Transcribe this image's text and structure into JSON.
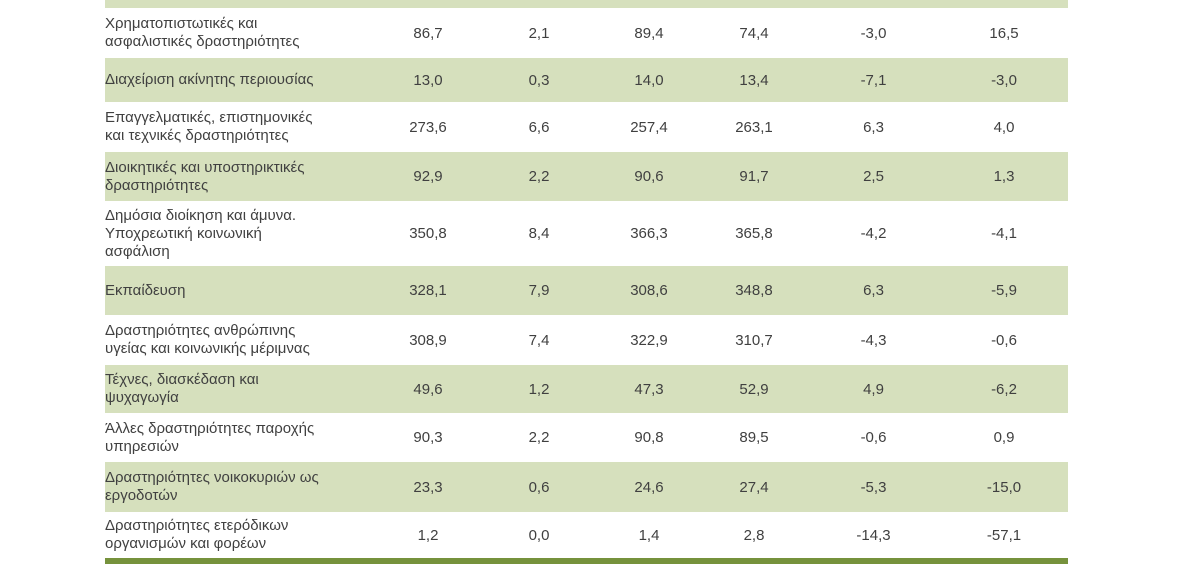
{
  "colors": {
    "band_green": "#d6e0bd",
    "border_olive": "#76923c",
    "text": "#404040",
    "background": "#ffffff"
  },
  "table": {
    "decimal_separator": ",",
    "rows": [
      {
        "label": "Χρηματοπιστωτικές και\nασφαλιστικές δραστηριότητες",
        "values": [
          "86,7",
          "2,1",
          "89,4",
          "74,4",
          "-3,0",
          "16,5"
        ],
        "shaded": false
      },
      {
        "label": "Διαχείριση ακίνητης περιουσίας",
        "values": [
          "13,0",
          "0,3",
          "14,0",
          "13,4",
          "-7,1",
          "-3,0"
        ],
        "shaded": true
      },
      {
        "label": "Επαγγελματικές, επιστημονικές\nκαι τεχνικές δραστηριότητες",
        "values": [
          "273,6",
          "6,6",
          "257,4",
          "263,1",
          "6,3",
          "4,0"
        ],
        "shaded": false
      },
      {
        "label": "Διοικητικές και υποστηρικτικές\nδραστηριότητες",
        "values": [
          "92,9",
          "2,2",
          "90,6",
          "91,7",
          "2,5",
          "1,3"
        ],
        "shaded": true
      },
      {
        "label": "Δημόσια διοίκηση και άμυνα.\nΥποχρεωτική κοινωνική\nασφάλιση",
        "values": [
          "350,8",
          "8,4",
          "366,3",
          "365,8",
          "-4,2",
          "-4,1"
        ],
        "shaded": false
      },
      {
        "label": "Εκπαίδευση",
        "values": [
          "328,1",
          "7,9",
          "308,6",
          "348,8",
          "6,3",
          "-5,9"
        ],
        "shaded": true
      },
      {
        "label": "Δραστηριότητες ανθρώπινης\nυγείας και κοινωνικής μέριμνας",
        "values": [
          "308,9",
          "7,4",
          "322,9",
          "310,7",
          "-4,3",
          "-0,6"
        ],
        "shaded": false
      },
      {
        "label": "Τέχνες, διασκέδαση και\nψυχαγωγία",
        "values": [
          "49,6",
          "1,2",
          "47,3",
          "52,9",
          "4,9",
          "-6,2"
        ],
        "shaded": true
      },
      {
        "label": "Άλλες δραστηριότητες παροχής\nυπηρεσιών",
        "values": [
          "90,3",
          "2,2",
          "90,8",
          "89,5",
          "-0,6",
          "0,9"
        ],
        "shaded": false
      },
      {
        "label": "Δραστηριότητες νοικοκυριών ως\nεργοδοτών",
        "values": [
          "23,3",
          "0,6",
          "24,6",
          "27,4",
          "-5,3",
          "-15,0"
        ],
        "shaded": true
      },
      {
        "label": "Δραστηριότητες ετερόδικων\nοργανισμών και φορέων",
        "values": [
          "1,2",
          "0,0",
          "1,4",
          "2,8",
          "-14,3",
          "-57,1"
        ],
        "shaded": false
      }
    ]
  }
}
